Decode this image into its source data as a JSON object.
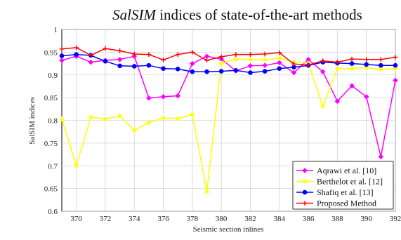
{
  "chart_data": {
    "type": "line",
    "title_italic": "SalSIM",
    "title_rest": " indices of state-of-the-art methods",
    "xlabel": "Seismic section inlines",
    "ylabel": "SalSIM indices",
    "xlim": [
      369,
      392
    ],
    "ylim": [
      0.6,
      1.0
    ],
    "xticks": [
      370,
      372,
      374,
      376,
      378,
      380,
      382,
      384,
      386,
      388,
      390,
      392
    ],
    "yticks": [
      0.6,
      0.65,
      0.7,
      0.75,
      0.8,
      0.85,
      0.9,
      0.95,
      1
    ],
    "ytick_labels": [
      "0.6",
      "0.65",
      "0.7",
      "0.75",
      "0.8",
      "0.85",
      "0.9",
      "0.95",
      "1"
    ],
    "grid": true,
    "legend_position": "bottom-right",
    "x": [
      369,
      370,
      371,
      372,
      373,
      374,
      375,
      376,
      377,
      378,
      379,
      380,
      381,
      382,
      383,
      384,
      385,
      386,
      387,
      388,
      389,
      390,
      391,
      392
    ],
    "series": [
      {
        "name": "Aqrawi et al. [10]",
        "color": "#ff00ff",
        "marker": "diamond",
        "values": [
          0.932,
          0.941,
          0.928,
          0.932,
          0.934,
          0.941,
          0.849,
          0.852,
          0.854,
          0.925,
          0.941,
          0.935,
          0.909,
          0.92,
          0.921,
          0.927,
          0.905,
          0.934,
          0.907,
          0.842,
          0.876,
          0.852,
          0.72,
          0.888
        ]
      },
      {
        "name": "Berthelot et al. [12]",
        "color": "#ffff00",
        "marker": "star",
        "values": [
          0.803,
          0.7,
          0.807,
          0.803,
          0.81,
          0.778,
          0.795,
          0.805,
          0.804,
          0.813,
          0.643,
          0.925,
          0.935,
          0.934,
          0.933,
          0.937,
          0.928,
          0.926,
          0.831,
          0.914,
          0.914,
          0.916,
          0.912,
          0.914
        ]
      },
      {
        "name": "Shafiq et al. [13]",
        "color": "#0000ff",
        "marker": "circle",
        "values": [
          0.942,
          0.945,
          0.943,
          0.93,
          0.92,
          0.919,
          0.921,
          0.914,
          0.913,
          0.907,
          0.907,
          0.908,
          0.91,
          0.905,
          0.908,
          0.914,
          0.917,
          0.921,
          0.928,
          0.926,
          0.925,
          0.923,
          0.921,
          0.921
        ]
      },
      {
        "name": "Proposed Method",
        "color": "#ff0000",
        "marker": "plus",
        "values": [
          0.957,
          0.96,
          0.943,
          0.958,
          0.953,
          0.946,
          0.945,
          0.933,
          0.945,
          0.95,
          0.932,
          0.94,
          0.945,
          0.945,
          0.946,
          0.949,
          0.924,
          0.922,
          0.931,
          0.928,
          0.935,
          0.934,
          0.934,
          0.939
        ]
      }
    ]
  }
}
